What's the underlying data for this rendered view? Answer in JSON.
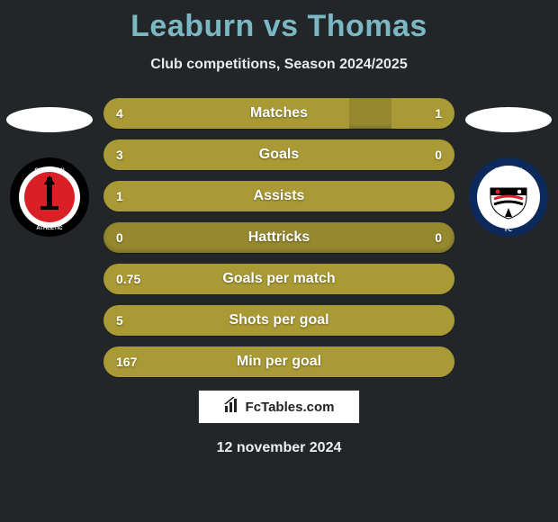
{
  "title": "Leaburn vs Thomas",
  "subtitle": "Club competitions, Season 2024/2025",
  "colors": {
    "background": "#222629",
    "title": "#7bb8c4",
    "bar_base": "#95882f",
    "bar_fill": "#a99a35",
    "text": "#ffffff"
  },
  "left_crest": {
    "name": "Charlton Athletic",
    "bg": "#000000",
    "inner": "#ffffff",
    "accent": "#d92027"
  },
  "right_crest": {
    "name": "Bromley FC",
    "bg": "#ffffff",
    "ring": "#0b2a5b",
    "accent": "#d92027"
  },
  "bars": [
    {
      "label": "Matches",
      "left": "4",
      "right": "1",
      "left_pct": 70,
      "right_pct": 18
    },
    {
      "label": "Goals",
      "left": "3",
      "right": "0",
      "left_pct": 100,
      "right_pct": 0
    },
    {
      "label": "Assists",
      "left": "1",
      "right": "",
      "left_pct": 100,
      "right_pct": 0
    },
    {
      "label": "Hattricks",
      "left": "0",
      "right": "0",
      "left_pct": 0,
      "right_pct": 0
    },
    {
      "label": "Goals per match",
      "left": "0.75",
      "right": "",
      "left_pct": 100,
      "right_pct": 0
    },
    {
      "label": "Shots per goal",
      "left": "5",
      "right": "",
      "left_pct": 100,
      "right_pct": 0
    },
    {
      "label": "Min per goal",
      "left": "167",
      "right": "",
      "left_pct": 100,
      "right_pct": 0
    }
  ],
  "footer_brand": "FcTables.com",
  "footer_date": "12 november 2024"
}
